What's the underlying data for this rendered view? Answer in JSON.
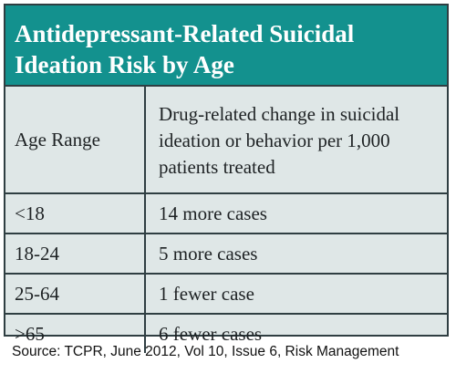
{
  "title": {
    "line1": "Antidepressant-Related Suicidal",
    "line2": "Ideation Risk by Age"
  },
  "table": {
    "headers": {
      "age": "Age Range",
      "change": "Drug-related change in suicidal ideation or behavior per 1,000 patients treated"
    },
    "rows": [
      {
        "age": "<18",
        "change": "14 more cases"
      },
      {
        "age": "18-24",
        "change": "5 more cases"
      },
      {
        "age": "25-64",
        "change": "1 fewer case"
      },
      {
        "age": ">65",
        "change": "6 fewer cases"
      }
    ]
  },
  "source": "Source: TCPR, June 2012, Vol 10, Issue 6, Risk Management",
  "colors": {
    "title_bg": "#13918e",
    "table_bg": "#dfe7e7",
    "border": "#2f3e42"
  }
}
